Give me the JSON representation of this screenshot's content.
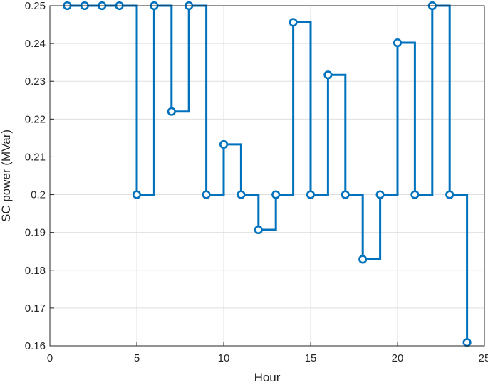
{
  "chart_data": {
    "type": "line",
    "style": "stairs-with-markers",
    "xlabel": "Hour",
    "ylabel": "SC power (MVar)",
    "xlim": [
      0,
      25
    ],
    "ylim": [
      0.16,
      0.25
    ],
    "xticks": [
      0,
      5,
      10,
      15,
      20,
      25
    ],
    "yticks": [
      0.16,
      0.17,
      0.18,
      0.19,
      0.2,
      0.21,
      0.22,
      0.23,
      0.24,
      0.25
    ],
    "grid": true,
    "series_color": "#0072BD",
    "series": [
      {
        "x": [
          1,
          2,
          3,
          4,
          5,
          6,
          7,
          8,
          9,
          10,
          11,
          12,
          13,
          14,
          15,
          16,
          17,
          18,
          19,
          20,
          21,
          22,
          23,
          24
        ],
        "values": [
          0.25,
          0.25,
          0.25,
          0.25,
          0.2,
          0.25,
          0.222,
          0.25,
          0.2,
          0.2133,
          0.2,
          0.1907,
          0.2,
          0.2456,
          0.2,
          0.2317,
          0.2,
          0.1829,
          0.2,
          0.2402,
          0.2,
          0.25,
          0.2,
          0.1609
        ]
      }
    ]
  }
}
